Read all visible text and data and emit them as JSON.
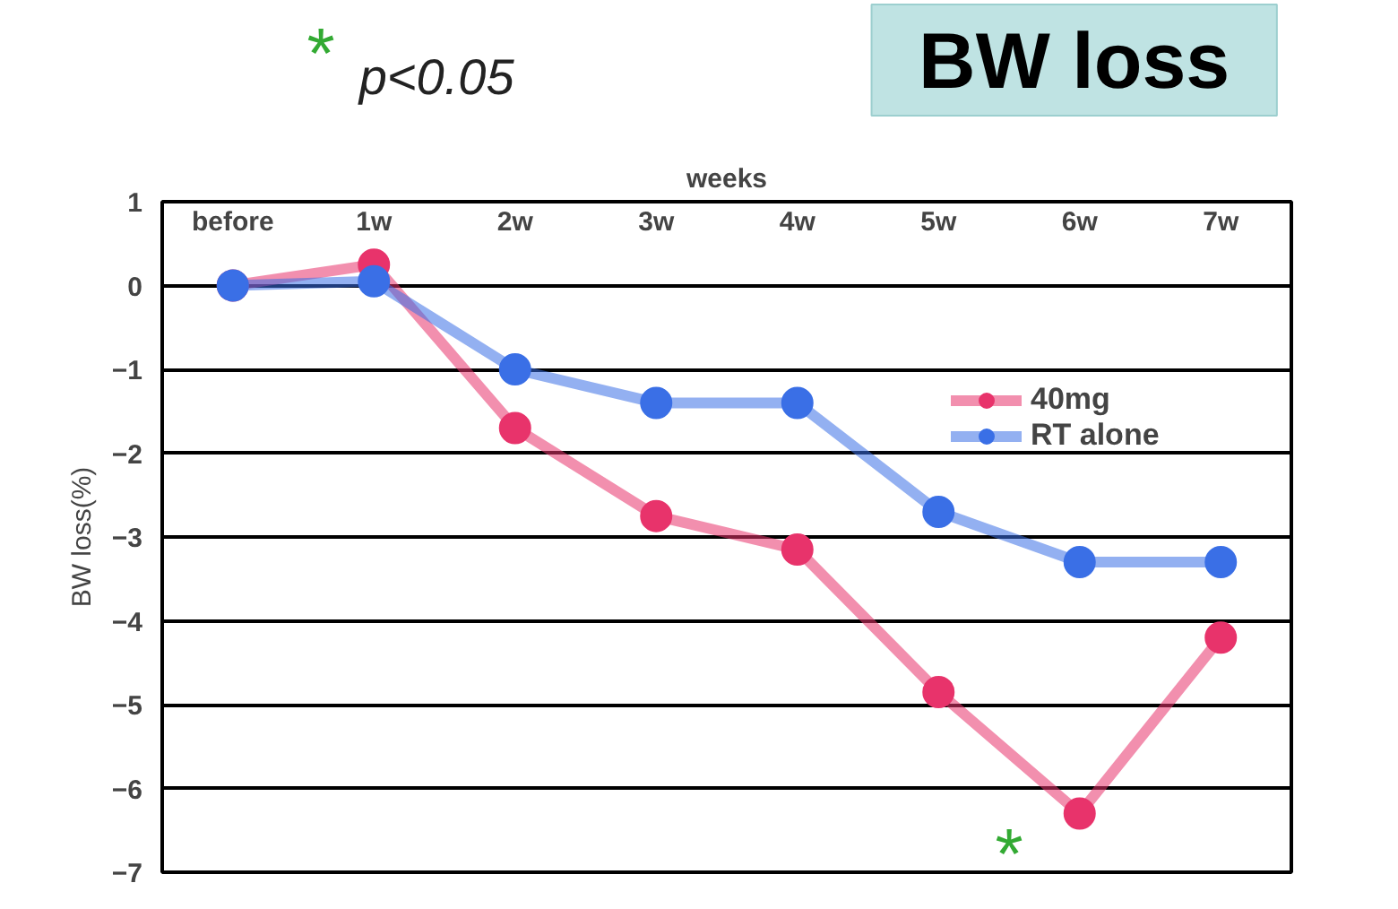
{
  "chart_data": {
    "type": "line",
    "title": "BW loss",
    "xlabel": "weeks",
    "ylabel": "BW loss(%)",
    "categories": [
      "before",
      "1w",
      "2w",
      "3w",
      "4w",
      "5w",
      "6w",
      "7w"
    ],
    "series": [
      {
        "name": "40mg",
        "color": "#e8336b",
        "values": [
          0,
          0.25,
          -1.7,
          -2.75,
          -3.15,
          -4.85,
          -6.3,
          -4.2
        ]
      },
      {
        "name": "RT alone",
        "color": "#3a6fe6",
        "values": [
          0,
          0.05,
          -1.0,
          -1.4,
          -1.4,
          -2.7,
          -3.3,
          -3.3
        ]
      }
    ],
    "ylim": [
      -7,
      1
    ],
    "yticks": [
      -7,
      -6,
      -5,
      -4,
      -3,
      -2,
      -1,
      0,
      1
    ],
    "grid": "y",
    "legend": "top right",
    "marker": "circle",
    "line_style": "solid",
    "annotations": [
      "* p<0.05",
      "*"
    ]
  }
}
